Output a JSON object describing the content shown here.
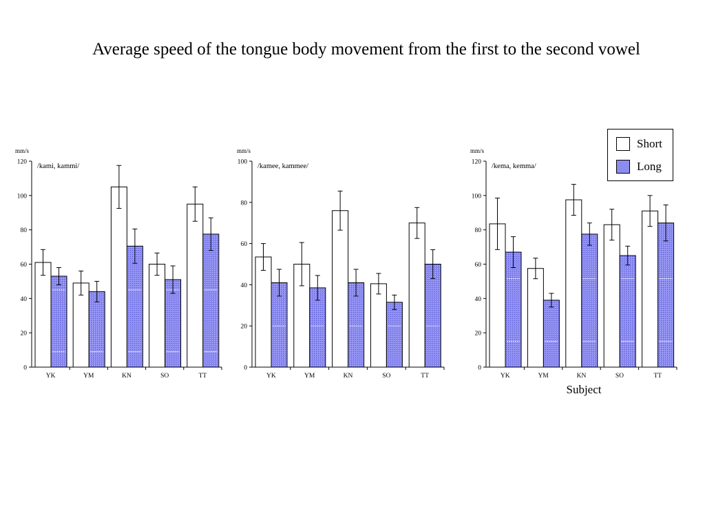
{
  "title": "Average speed of the tongue body movement from the first to the second vowel",
  "legend": {
    "short": "Short",
    "long": "Long"
  },
  "colors": {
    "long_fill": "#8c8cf0",
    "short_fill": "#ffffff",
    "stroke": "#000000",
    "dashes": "#ffffff"
  },
  "xlabel": "Subject",
  "chart_data": [
    {
      "type": "bar",
      "title": "/kami, kammi/",
      "ylabel": "mm/s",
      "ylim": [
        0,
        120
      ],
      "yticks": [
        "0",
        "20",
        "40",
        "60",
        "80",
        "100",
        "120"
      ],
      "categories": [
        "YK",
        "YM",
        "KN",
        "SO",
        "TT"
      ],
      "series": [
        {
          "name": "Short",
          "values": [
            61,
            49,
            105,
            60,
            95
          ],
          "errors": [
            7.5,
            7,
            12.5,
            6.5,
            10
          ]
        },
        {
          "name": "Long",
          "values": [
            53,
            44,
            70.5,
            51,
            77.5
          ],
          "errors": [
            5,
            6,
            10,
            8,
            9.5
          ]
        }
      ]
    },
    {
      "type": "bar",
      "title": "/kamee, kammee/",
      "ylabel": "mm/s",
      "ylim": [
        0,
        100
      ],
      "yticks": [
        "0",
        "20",
        "40",
        "60",
        "80",
        "100"
      ],
      "categories": [
        "YK",
        "YM",
        "KN",
        "SO",
        "TT"
      ],
      "series": [
        {
          "name": "Short",
          "values": [
            53.5,
            50,
            76,
            40.5,
            70
          ],
          "errors": [
            6.5,
            10.5,
            9.5,
            5,
            7.5
          ]
        },
        {
          "name": "Long",
          "values": [
            41,
            38.5,
            41,
            31.5,
            50
          ],
          "errors": [
            6.5,
            6,
            6.5,
            3.5,
            7
          ]
        }
      ]
    },
    {
      "type": "bar",
      "title": "/kema, kemma/",
      "ylabel": "mm/s",
      "ylim": [
        0,
        120
      ],
      "yticks": [
        "0",
        "20",
        "40",
        "60",
        "80",
        "100",
        "120"
      ],
      "categories": [
        "YK",
        "YM",
        "KN",
        "SO",
        "TT"
      ],
      "series": [
        {
          "name": "Short",
          "values": [
            83.5,
            57.5,
            97.5,
            83,
            91
          ],
          "errors": [
            15,
            6,
            9,
            9,
            9
          ]
        },
        {
          "name": "Long",
          "values": [
            67,
            39,
            77.5,
            65,
            84
          ],
          "errors": [
            9,
            4,
            6.5,
            5.5,
            10.5
          ]
        }
      ]
    }
  ]
}
